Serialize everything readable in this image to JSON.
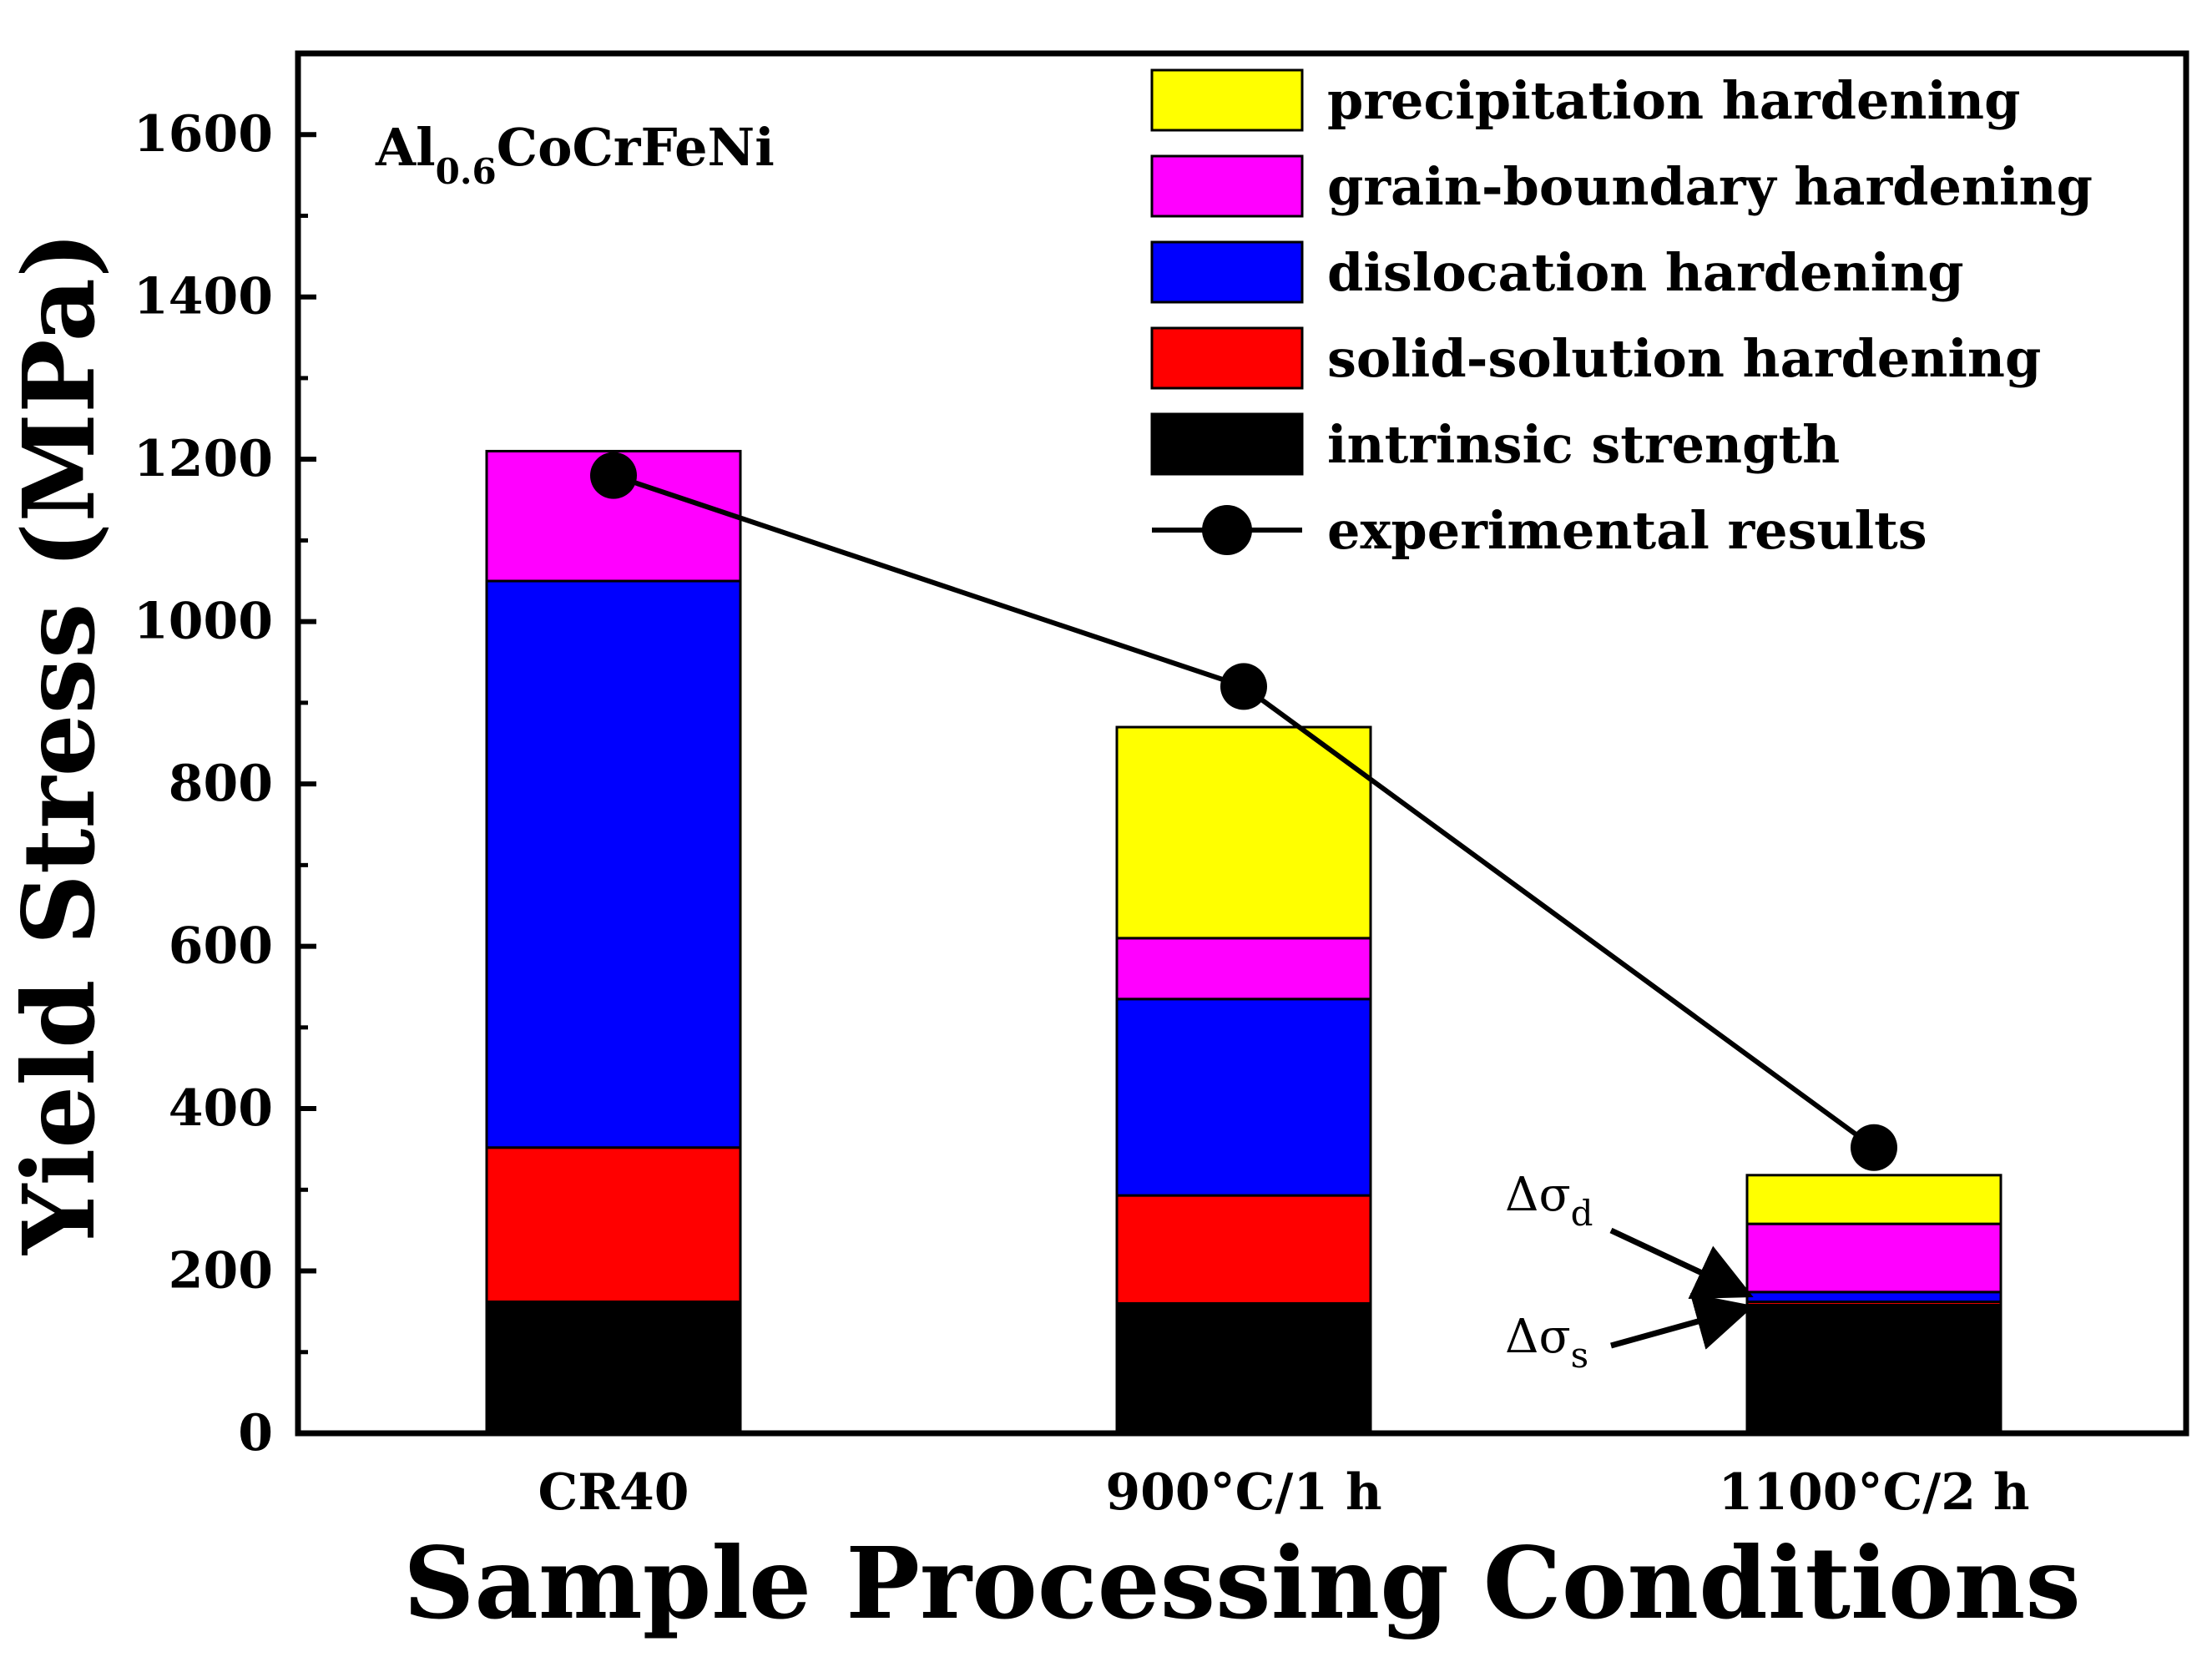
{
  "chart_data": {
    "type": "bar",
    "stacked": true,
    "categories": [
      "CR40",
      "900°C/1 h",
      "1100°C/2 h"
    ],
    "xlabel": "Sample Processing Conditions",
    "ylabel": "Yield Stress (MPa)",
    "ylim": [
      0,
      1700
    ],
    "yticks": [
      0,
      200,
      400,
      600,
      800,
      1000,
      1200,
      1400,
      1600
    ],
    "grid": false,
    "legend_position": "top-right",
    "annotation": {
      "base": "Al",
      "sub": "0.6",
      "rest": "CoCrFeNi"
    },
    "series": [
      {
        "name": "intrinsic strength",
        "color": "#000000",
        "values": [
          162,
          160,
          158
        ]
      },
      {
        "name": "solid-solution hardening",
        "color": "#ff0000",
        "values": [
          190,
          133,
          4
        ]
      },
      {
        "name": "dislocation hardening",
        "color": "#0000ff",
        "values": [
          698,
          242,
          12
        ]
      },
      {
        "name": "grain-boundary hardening",
        "color": "#ff00ff",
        "values": [
          160,
          75,
          84
        ]
      },
      {
        "name": "precipitation hardening",
        "color": "#ffff00",
        "values": [
          0,
          260,
          60
        ]
      }
    ],
    "experimental": {
      "name": "experimental results",
      "color": "#000000",
      "values": [
        1180,
        920,
        352
      ]
    },
    "arrow_labels": [
      {
        "delta": "Δσ",
        "sub": "d"
      },
      {
        "delta": "Δσ",
        "sub": "s"
      }
    ]
  }
}
